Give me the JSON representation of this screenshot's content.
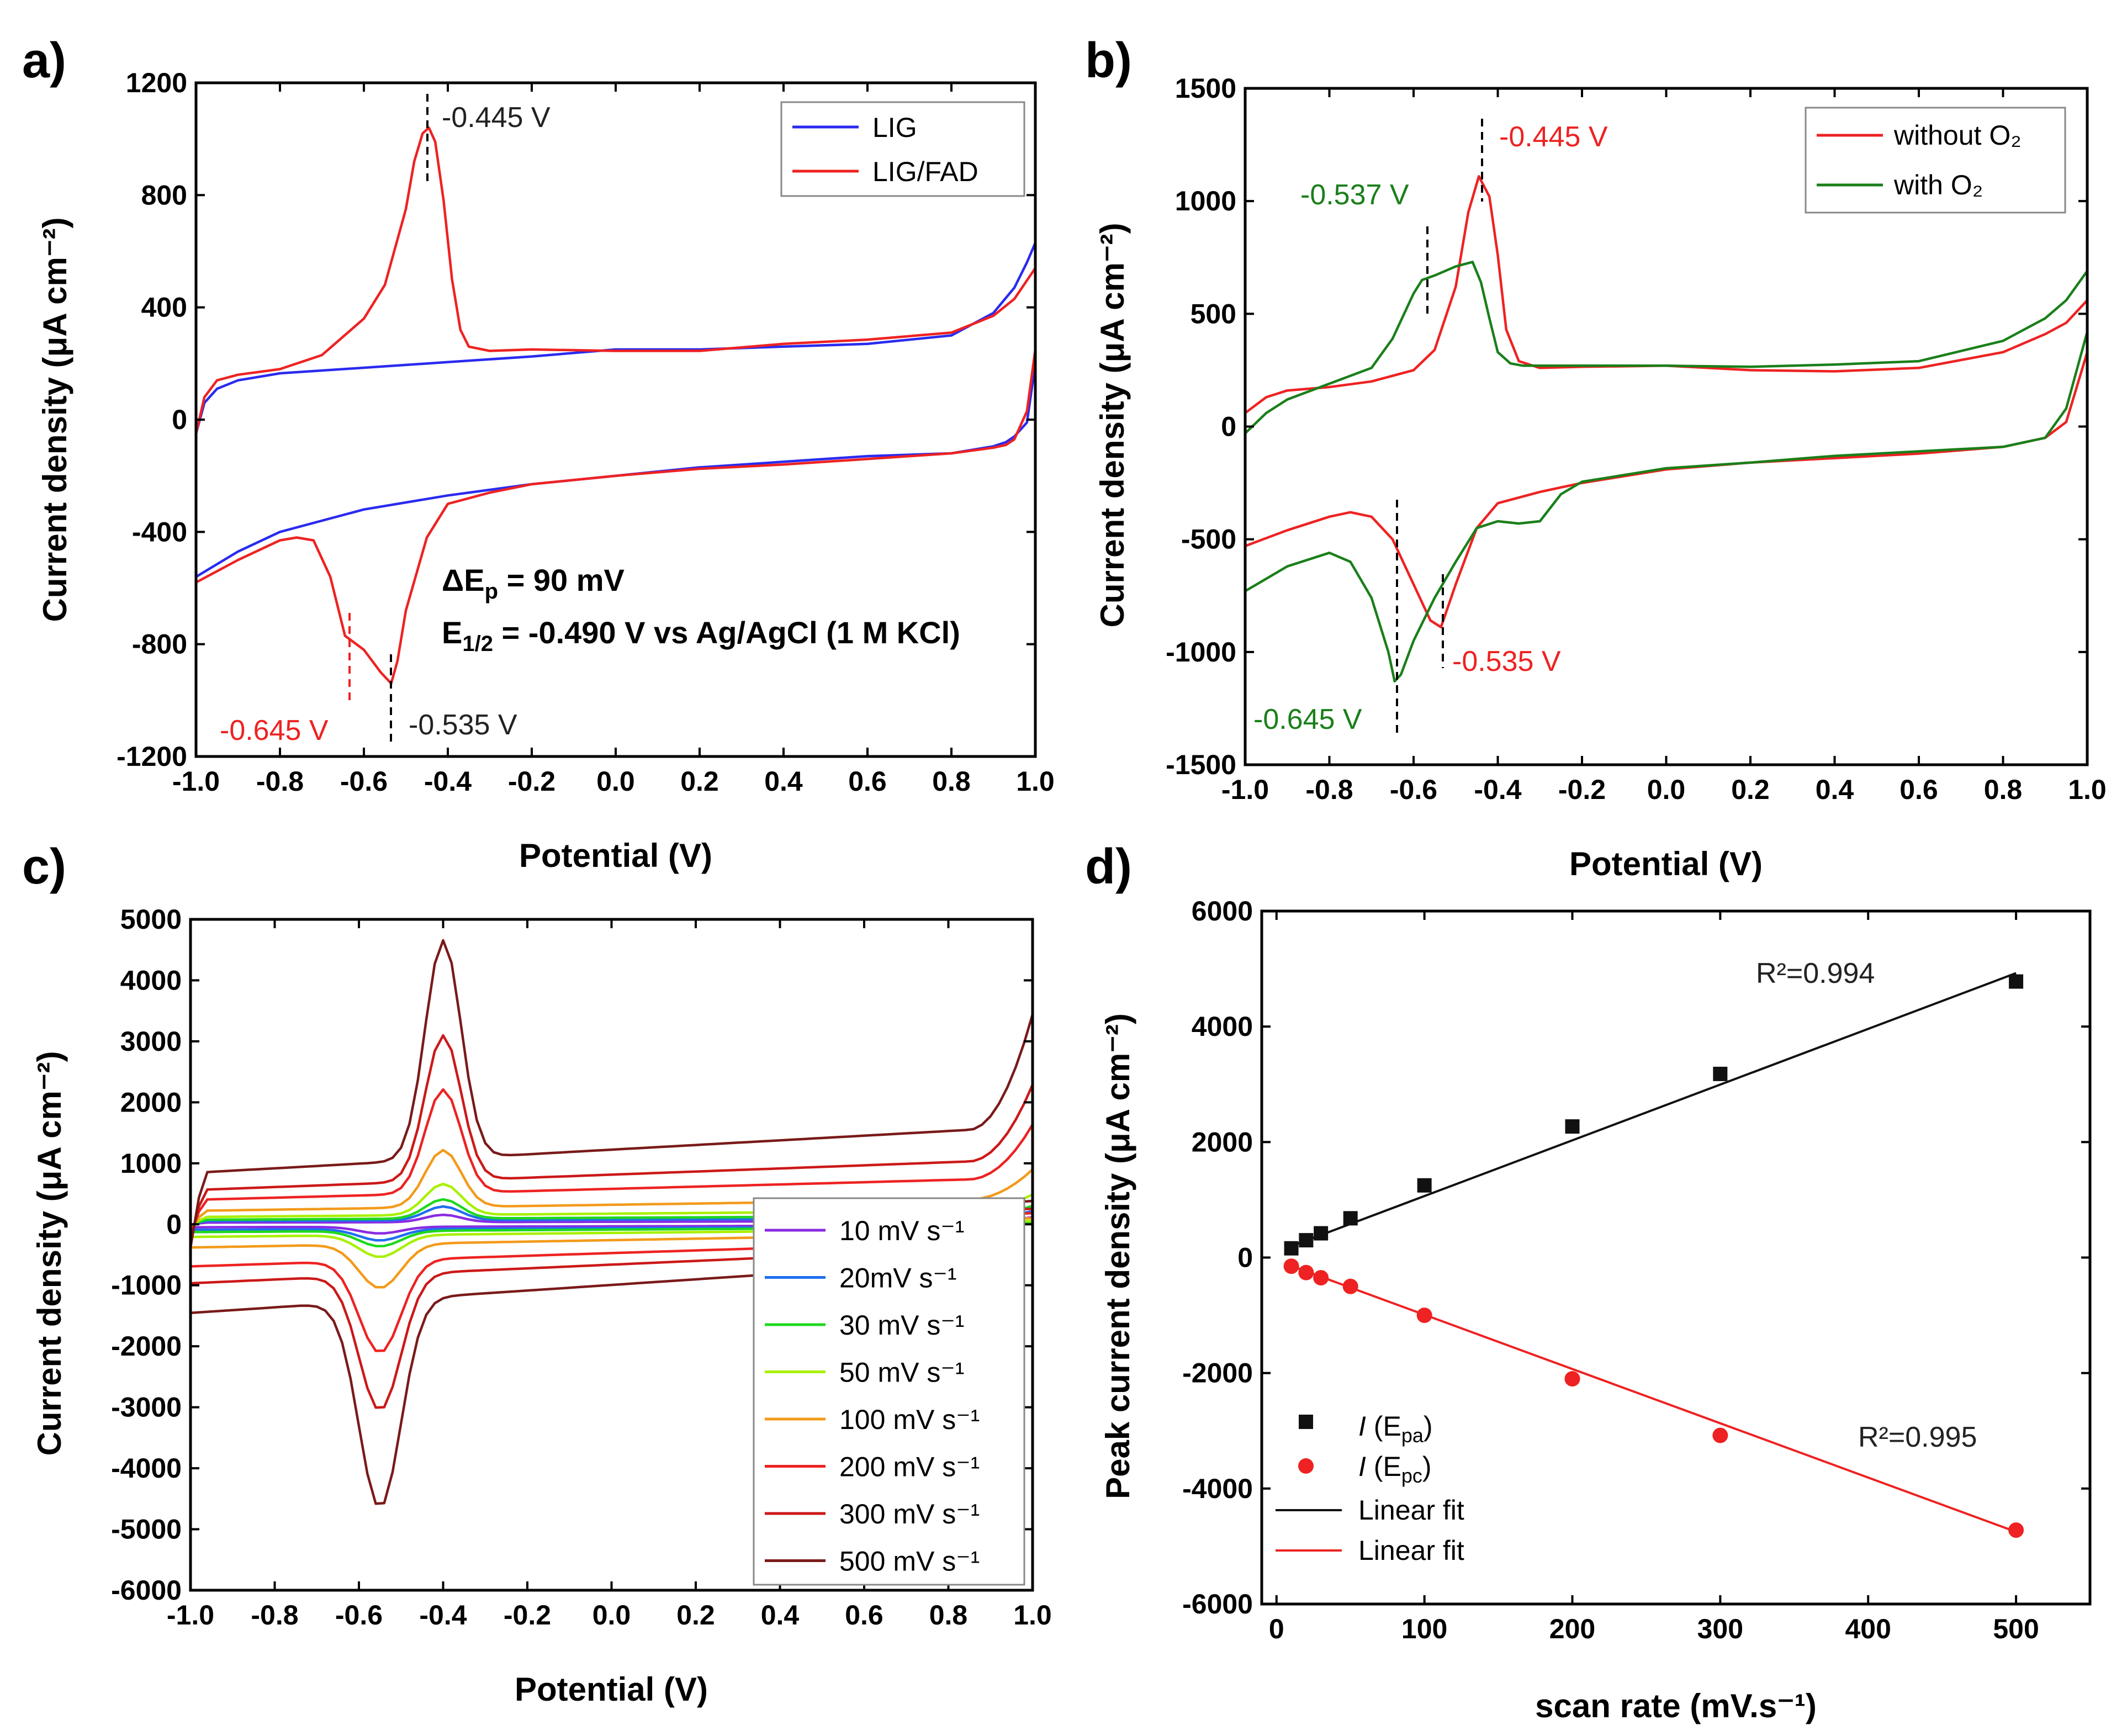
{
  "colors": {
    "blue": "#2a2af0",
    "red": "#ee2222",
    "green": "#1a7f1a",
    "black": "#111111",
    "purple": "#8a2be2",
    "lightblue": "#1e6ff0",
    "brightgreen": "#1ed81e",
    "yellowgreen": "#a8f000",
    "orange": "#f39a1a",
    "darkred": "#b81414",
    "maroon": "#7a1a1a"
  },
  "chart_data": [
    {
      "panel": "a)",
      "type": "line",
      "xlabel": "Potential (V)",
      "ylabel": "Current density (μA cm⁻²)",
      "xlim": [
        -1.0,
        1.0
      ],
      "ylim": [
        -1200,
        1200
      ],
      "xticks": [
        "-1.0",
        "-0.8",
        "-0.6",
        "-0.4",
        "-0.2",
        "0.0",
        "0.2",
        "0.4",
        "0.6",
        "0.8",
        "1.0"
      ],
      "yticks": [
        "-1200",
        "-800",
        "-400",
        "0",
        "400",
        "800",
        "1200"
      ],
      "legend": [
        "LIG",
        "LIG/FAD"
      ],
      "series": [
        {
          "name": "LIG",
          "color": "#2a2af0",
          "x": [
            -1.0,
            -0.98,
            -0.95,
            -0.9,
            -0.8,
            -0.6,
            -0.4,
            -0.2,
            0.0,
            0.2,
            0.4,
            0.6,
            0.8,
            0.9,
            0.95,
            0.98,
            1.0,
            1.0,
            0.98,
            0.95,
            0.93,
            0.9,
            0.8,
            0.6,
            0.4,
            0.2,
            0.0,
            -0.2,
            -0.4,
            -0.6,
            -0.8,
            -0.9,
            -1.0
          ],
          "y": [
            -50,
            60,
            110,
            140,
            165,
            185,
            205,
            225,
            250,
            250,
            260,
            270,
            300,
            380,
            470,
            560,
            630,
            200,
            -10,
            -60,
            -80,
            -95,
            -120,
            -130,
            -150,
            -170,
            -200,
            -230,
            -270,
            -320,
            -400,
            -470,
            -560
          ]
        },
        {
          "name": "LIG/FAD",
          "color": "#ee2222",
          "x": [
            -1.0,
            -0.98,
            -0.95,
            -0.9,
            -0.8,
            -0.7,
            -0.6,
            -0.55,
            -0.5,
            -0.48,
            -0.46,
            -0.445,
            -0.43,
            -0.41,
            -0.39,
            -0.37,
            -0.35,
            -0.3,
            -0.2,
            0.0,
            0.2,
            0.4,
            0.6,
            0.8,
            0.9,
            0.95,
            1.0,
            1.0,
            0.98,
            0.95,
            0.93,
            0.9,
            0.8,
            0.6,
            0.4,
            0.2,
            0.0,
            -0.2,
            -0.3,
            -0.4,
            -0.45,
            -0.5,
            -0.52,
            -0.535,
            -0.56,
            -0.6,
            -0.645,
            -0.68,
            -0.72,
            -0.76,
            -0.8,
            -0.9,
            -1.0
          ],
          "y": [
            -50,
            80,
            140,
            160,
            180,
            230,
            360,
            480,
            750,
            920,
            1020,
            1040,
            990,
            780,
            500,
            320,
            260,
            245,
            250,
            245,
            245,
            270,
            285,
            310,
            370,
            430,
            540,
            250,
            30,
            -70,
            -90,
            -100,
            -120,
            -140,
            -160,
            -175,
            -200,
            -230,
            -260,
            -300,
            -420,
            -680,
            -860,
            -940,
            -900,
            -820,
            -770,
            -560,
            -430,
            -420,
            -430,
            -500,
            -580
          ]
        }
      ],
      "annotations": [
        "-0.445 V",
        "-0.645 V",
        "-0.535 V"
      ],
      "delta_label": "ΔE",
      "delta_sub": "p",
      "delta_value": " = 90 mV",
      "ehalf_label": "E",
      "ehalf_sub": "1/2",
      "ehalf_value": " = -0.490 V vs Ag/AgCl (1 M KCl)"
    },
    {
      "panel": "b)",
      "type": "line",
      "xlabel": "Potential (V)",
      "ylabel": "Current density (μA cm⁻²)",
      "xlim": [
        -1.0,
        1.0
      ],
      "ylim": [
        -1500,
        1500
      ],
      "xticks": [
        "-1.0",
        "-0.8",
        "-0.6",
        "-0.4",
        "-0.2",
        "0.0",
        "0.2",
        "0.4",
        "0.6",
        "0.8",
        "1.0"
      ],
      "yticks": [
        "-1500",
        "-1000",
        "-500",
        "0",
        "500",
        "1000",
        "1500"
      ],
      "legend": [
        "without O₂",
        "with O₂"
      ],
      "series": [
        {
          "name": "without O2",
          "color": "#ee2222",
          "x": [
            -1.0,
            -0.95,
            -0.9,
            -0.8,
            -0.7,
            -0.6,
            -0.55,
            -0.5,
            -0.47,
            -0.445,
            -0.42,
            -0.4,
            -0.38,
            -0.35,
            -0.3,
            -0.2,
            0.0,
            0.2,
            0.4,
            0.6,
            0.8,
            0.9,
            0.95,
            1.0,
            1.0,
            0.95,
            0.9,
            0.8,
            0.6,
            0.4,
            0.2,
            0.0,
            -0.2,
            -0.3,
            -0.4,
            -0.45,
            -0.5,
            -0.535,
            -0.56,
            -0.6,
            -0.65,
            -0.7,
            -0.75,
            -0.8,
            -0.9,
            -1.0
          ],
          "y": [
            60,
            130,
            160,
            175,
            200,
            250,
            340,
            620,
            950,
            1110,
            1020,
            760,
            430,
            290,
            260,
            265,
            270,
            250,
            245,
            260,
            330,
            410,
            460,
            560,
            330,
            20,
            -50,
            -90,
            -120,
            -140,
            -160,
            -190,
            -250,
            -290,
            -340,
            -450,
            -700,
            -890,
            -860,
            -700,
            -500,
            -400,
            -380,
            -400,
            -460,
            -530
          ]
        },
        {
          "name": "with O2",
          "color": "#1a7f1a",
          "x": [
            -1.0,
            -0.95,
            -0.9,
            -0.8,
            -0.7,
            -0.65,
            -0.6,
            -0.58,
            -0.55,
            -0.5,
            -0.46,
            -0.44,
            -0.42,
            -0.4,
            -0.37,
            -0.34,
            -0.3,
            -0.2,
            0.0,
            0.2,
            0.4,
            0.6,
            0.8,
            0.9,
            0.95,
            1.0,
            1.0,
            0.95,
            0.9,
            0.8,
            0.6,
            0.4,
            0.2,
            0.0,
            -0.2,
            -0.25,
            -0.3,
            -0.35,
            -0.4,
            -0.45,
            -0.5,
            -0.55,
            -0.6,
            -0.63,
            -0.645,
            -0.66,
            -0.7,
            -0.75,
            -0.8,
            -0.9,
            -1.0
          ],
          "y": [
            -30,
            60,
            120,
            190,
            260,
            390,
            590,
            650,
            670,
            710,
            730,
            640,
            480,
            330,
            280,
            270,
            270,
            270,
            270,
            265,
            275,
            290,
            380,
            480,
            560,
            690,
            420,
            80,
            -50,
            -90,
            -110,
            -130,
            -160,
            -185,
            -245,
            -300,
            -420,
            -430,
            -420,
            -450,
            -600,
            -760,
            -950,
            -1100,
            -1130,
            -1000,
            -760,
            -600,
            -560,
            -620,
            -730
          ]
        }
      ],
      "annotations": [
        "-0.445 V",
        "-0.537 V",
        "-0.535 V",
        "-0.645 V"
      ]
    },
    {
      "panel": "c)",
      "type": "line",
      "xlabel": "Potential (V)",
      "ylabel": "Current density (μA cm⁻²)",
      "xlim": [
        -1.0,
        1.0
      ],
      "ylim": [
        -6000,
        5000
      ],
      "xticks": [
        "-1.0",
        "-0.8",
        "-0.6",
        "-0.4",
        "-0.2",
        "0.0",
        "0.2",
        "0.4",
        "0.6",
        "0.8",
        "1.0"
      ],
      "yticks": [
        "-6000",
        "-5000",
        "-4000",
        "-3000",
        "-2000",
        "-1000",
        "0",
        "1000",
        "2000",
        "3000",
        "4000",
        "5000"
      ],
      "legend_title_unit": "mV s⁻¹",
      "series": [
        {
          "name": "10 mV s⁻¹",
          "scan": 10,
          "color": "#8a2be2",
          "peak_a": 160,
          "peak_c": -150
        },
        {
          "name": "20mV s⁻¹",
          "scan": 20,
          "color": "#1e6ff0",
          "peak_a": 300,
          "peak_c": -260
        },
        {
          "name": "30 mV s⁻¹",
          "scan": 30,
          "color": "#1ed81e",
          "peak_a": 420,
          "peak_c": -350
        },
        {
          "name": "50 mV s⁻¹",
          "scan": 50,
          "color": "#a8f000",
          "peak_a": 680,
          "peak_c": -500
        },
        {
          "name": "100 mV s⁻¹",
          "scan": 100,
          "color": "#f39a1a",
          "peak_a": 1250,
          "peak_c": -1000
        },
        {
          "name": "200 mV s⁻¹",
          "scan": 200,
          "color": "#ee2222",
          "peak_a": 2270,
          "peak_c": -2100
        },
        {
          "name": "300 mV s⁻¹",
          "scan": 300,
          "color": "#cc1818",
          "peak_a": 3180,
          "peak_c": -3080
        },
        {
          "name": "500 mV s⁻¹",
          "scan": 500,
          "color": "#7a1a1a",
          "peak_a": 4780,
          "peak_c": -4720
        }
      ]
    },
    {
      "panel": "d)",
      "type": "scatter",
      "xlabel": "scan rate (mV.s⁻¹)",
      "ylabel": "Peak current density (μA cm⁻²)",
      "xlim": [
        -10,
        550
      ],
      "ylim": [
        -6000,
        6000
      ],
      "xticks": [
        "0",
        "100",
        "200",
        "300",
        "400",
        "500"
      ],
      "yticks": [
        "-6000",
        "-4000",
        "-2000",
        "0",
        "2000",
        "4000",
        "6000"
      ],
      "x": [
        10,
        20,
        30,
        50,
        100,
        200,
        300,
        500
      ],
      "series": [
        {
          "name": "I (Epa)",
          "label": "I",
          "sub": "pa",
          "color": "#111111",
          "marker": "square",
          "values": [
            160,
            300,
            420,
            680,
            1250,
            2270,
            3180,
            4780
          ],
          "fit": {
            "slope": 9.65,
            "intercept": 100
          },
          "r2": "R²=0.994"
        },
        {
          "name": "I (Epc)",
          "label": "I",
          "sub": "pc",
          "color": "#ee2222",
          "marker": "circle",
          "values": [
            -150,
            -260,
            -350,
            -500,
            -1000,
            -2100,
            -3080,
            -4720
          ],
          "fit": {
            "slope": -9.4,
            "intercept": -50
          },
          "r2": "R²=0.995"
        }
      ],
      "fit_label": "Linear fit"
    }
  ]
}
